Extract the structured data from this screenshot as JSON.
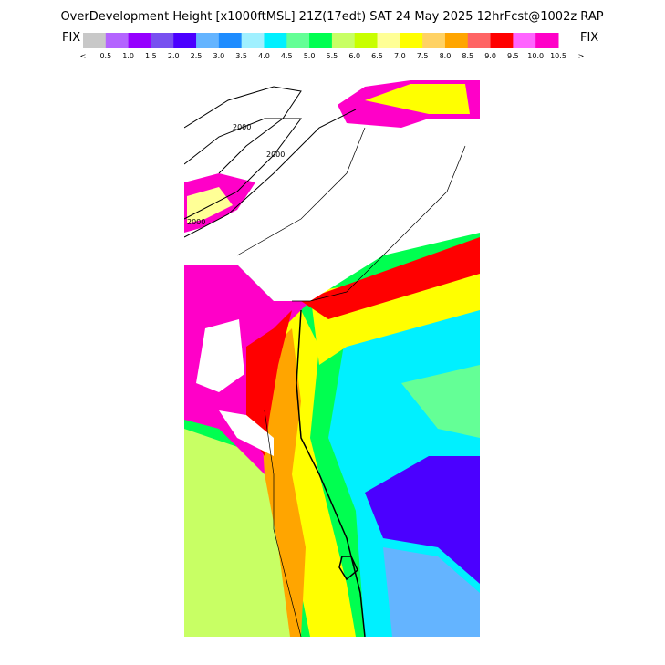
{
  "header": {
    "title": "OverDevelopment Height [x1000ftMSL] 21Z(17edt) SAT 24 May 2025 12hrFcst@1002z RAP",
    "left_label": "FIX",
    "right_label": "FIX"
  },
  "legend": {
    "colors": [
      "#c8c8c8",
      "#b464ff",
      "#9600ff",
      "#7850f0",
      "#4b00ff",
      "#64b4ff",
      "#1e8cff",
      "#a0f0ff",
      "#00f0ff",
      "#64ff96",
      "#00ff50",
      "#c8ff64",
      "#c8ff00",
      "#ffff96",
      "#ffff00",
      "#ffd264",
      "#ffa500",
      "#ff6464",
      "#ff0000",
      "#ff64ff",
      "#ff00c8"
    ],
    "low_label": "<",
    "labels": [
      "0.5",
      "1.0",
      "1.5",
      "2.0",
      "2.5",
      "3.0",
      "3.5",
      "4.0",
      "4.5",
      "5.0",
      "5.5",
      "6.0",
      "6.5",
      "7.0",
      "7.5",
      "8.0",
      "8.5",
      "9.0",
      "9.5",
      "10.0",
      "10.5"
    ],
    "high_label": ">"
  },
  "map": {
    "contour_labels": [
      "2000",
      "2000",
      "2000"
    ]
  }
}
